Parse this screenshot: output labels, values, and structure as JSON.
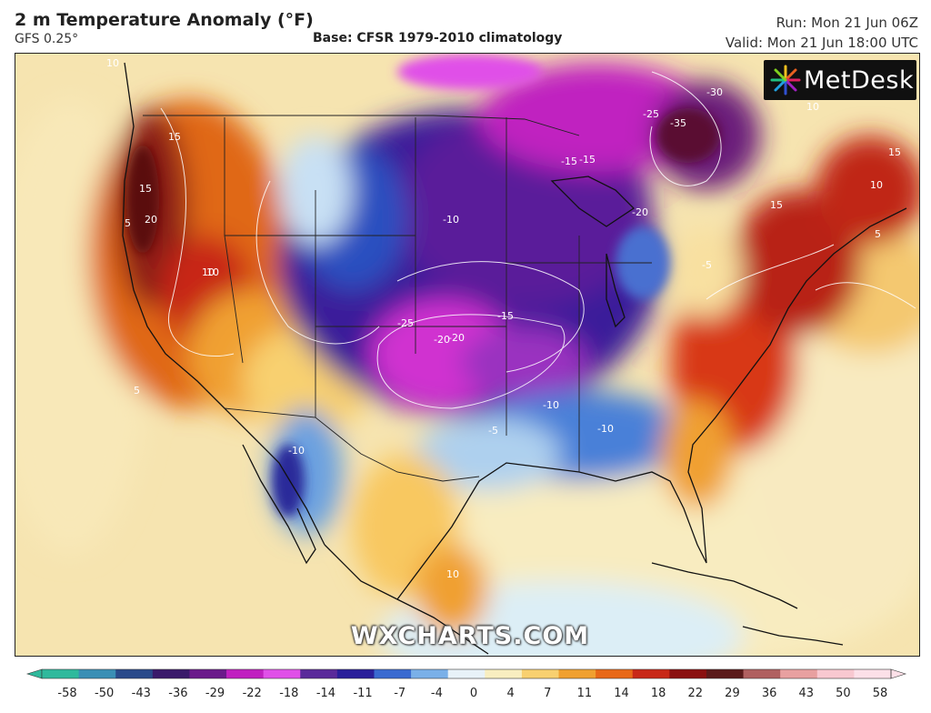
{
  "header": {
    "title": "2 m Temperature Anomaly (°F)",
    "model": "GFS 0.25°",
    "base": "Base: CFSR 1979-2010 climatology",
    "run": "Run: Mon 21 Jun 06Z",
    "valid": "Valid: Mon 21 Jun 18:00 UTC"
  },
  "logo": {
    "text": "MetDesk",
    "icon": "metdesk-starburst-icon"
  },
  "watermark": "WXCHARTS.COM",
  "legend": {
    "ticks": [
      "-58",
      "-50",
      "-43",
      "-36",
      "-29",
      "-22",
      "-18",
      "-14",
      "-11",
      "-7",
      "-4",
      "0",
      "4",
      "7",
      "11",
      "14",
      "18",
      "22",
      "29",
      "36",
      "43",
      "50",
      "58"
    ],
    "colors": [
      "#2fb99c",
      "#3a8fb5",
      "#2a4a8a",
      "#3a1a6a",
      "#6a1a8a",
      "#c020c0",
      "#e050e8",
      "#5a2a9a",
      "#2a1f9a",
      "#3a6ad0",
      "#7ab0e8",
      "#e8f2f8",
      "#f8eec0",
      "#f8d070",
      "#f0a030",
      "#e86818",
      "#c82818",
      "#8a1010",
      "#5a1a1a",
      "#b06060",
      "#e8a0a0",
      "#f8c8d0",
      "#fce0e8"
    ]
  },
  "contour_labels": [
    {
      "text": "10"
    },
    {
      "text": "15"
    },
    {
      "text": "20"
    },
    {
      "text": "15"
    },
    {
      "text": "10"
    },
    {
      "text": "5"
    },
    {
      "text": "-10"
    },
    {
      "text": "-15"
    },
    {
      "text": "-20"
    },
    {
      "text": "-25"
    },
    {
      "text": "-20"
    },
    {
      "text": "-15"
    },
    {
      "text": "-30"
    },
    {
      "text": "-35"
    },
    {
      "text": "-25"
    },
    {
      "text": "-15"
    },
    {
      "text": "-20"
    },
    {
      "text": "-10"
    },
    {
      "text": "10"
    },
    {
      "text": "15"
    },
    {
      "text": "10"
    },
    {
      "text": "5"
    },
    {
      "text": "-5"
    },
    {
      "text": "-10"
    },
    {
      "text": "-5"
    },
    {
      "text": "10"
    },
    {
      "text": "-10"
    },
    {
      "text": "10"
    },
    {
      "text": "5"
    },
    {
      "text": "15"
    }
  ]
}
